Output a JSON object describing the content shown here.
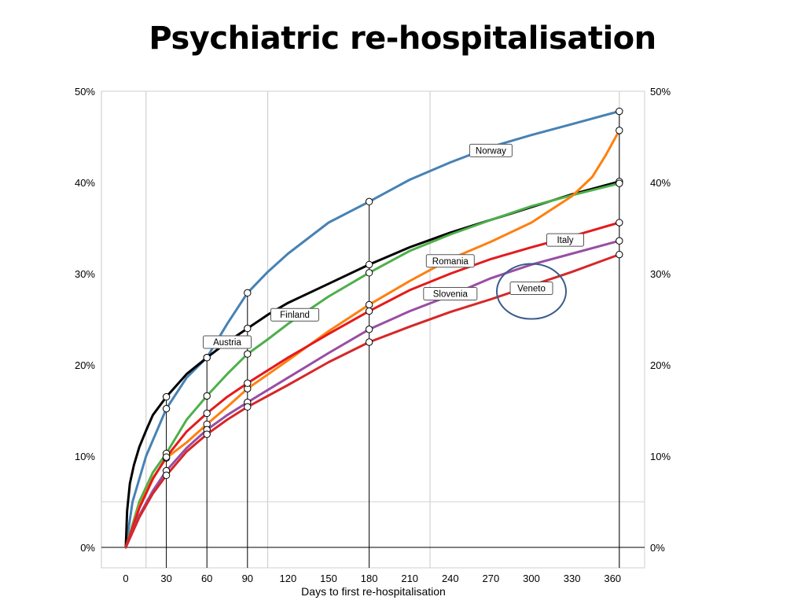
{
  "slide": {
    "title": "Psychiatric re-hospitalisation"
  },
  "chart_data": {
    "type": "line",
    "title": "Psychiatric re-hospitalisation",
    "xlabel": "Days to first re-hospitalisation",
    "ylabel": "",
    "xlim": [
      -25,
      380
    ],
    "ylim": [
      0,
      50
    ],
    "x_ticks": [
      0,
      30,
      60,
      90,
      120,
      150,
      180,
      210,
      240,
      270,
      300,
      330,
      360
    ],
    "x_tick_labels": [
      "0",
      "30",
      "60",
      "90",
      "120",
      "150",
      "180",
      "210",
      "240",
      "270",
      "300",
      "330",
      "360"
    ],
    "y_ticks": [
      0,
      10,
      20,
      30,
      40,
      50
    ],
    "y_tick_labels": [
      "0%",
      "10%",
      "20%",
      "30%",
      "40%",
      "50%"
    ],
    "right_y_axis": true,
    "grid": {
      "x_gridlines": [
        -18,
        15,
        105,
        225,
        365
      ],
      "y_gridlines": [
        5
      ]
    },
    "marker_days": [
      30,
      60,
      90,
      180,
      365
    ],
    "series": [
      {
        "name": "Norway",
        "color": "#4682b4",
        "x": [
          0,
          5,
          15,
          30,
          45,
          60,
          75,
          90,
          105,
          120,
          150,
          180,
          210,
          240,
          270,
          300,
          330,
          365
        ],
        "y": [
          0,
          5,
          10,
          15.2,
          18.6,
          20.8,
          24.5,
          27.9,
          30.2,
          32.2,
          35.6,
          37.9,
          40.3,
          42.2,
          43.9,
          45.2,
          46.4,
          47.8
        ]
      },
      {
        "name": "Austria",
        "color": "#000000",
        "x": [
          0,
          1,
          3,
          6,
          10,
          15,
          20,
          30,
          45,
          60,
          75,
          90,
          105,
          120,
          150,
          180,
          210,
          240,
          270,
          300,
          330,
          365
        ],
        "y": [
          0,
          4,
          7,
          9,
          11,
          12.8,
          14.5,
          16.5,
          19,
          20.8,
          22.5,
          24,
          25.5,
          26.8,
          28.9,
          31,
          32.9,
          34.5,
          35.9,
          37.3,
          38.7,
          40.1
        ]
      },
      {
        "name": "Finland",
        "color": "#4daf4a",
        "x": [
          0,
          10,
          20,
          30,
          45,
          60,
          75,
          90,
          105,
          120,
          150,
          180,
          210,
          240,
          270,
          300,
          330,
          365
        ],
        "y": [
          0,
          5,
          8.2,
          10.3,
          14,
          16.6,
          19,
          21.2,
          22.8,
          24.5,
          27.5,
          30.1,
          32.5,
          34.3,
          35.9,
          37.4,
          38.6,
          39.9
        ]
      },
      {
        "name": "Romania",
        "color": "#ff7f0e",
        "x": [
          0,
          10,
          20,
          30,
          45,
          60,
          75,
          90,
          120,
          150,
          180,
          210,
          240,
          270,
          300,
          330,
          345,
          355,
          365
        ],
        "y": [
          0,
          4.5,
          7.6,
          9.8,
          11.5,
          13.5,
          15.4,
          17.4,
          20.5,
          23.7,
          26.6,
          29.2,
          31.6,
          33.5,
          35.6,
          38.5,
          40.6,
          43,
          45.7
        ]
      },
      {
        "name": "Italy",
        "color": "#e41a1c",
        "x": [
          0,
          10,
          20,
          30,
          45,
          60,
          75,
          90,
          120,
          150,
          180,
          210,
          240,
          270,
          300,
          330,
          365
        ],
        "y": [
          0,
          4.3,
          7.5,
          9.9,
          12.7,
          14.7,
          16.5,
          18,
          20.8,
          23.4,
          25.9,
          28.2,
          30,
          31.6,
          32.9,
          34.1,
          35.6
        ]
      },
      {
        "name": "Slovenia",
        "color": "#984ea3",
        "x": [
          0,
          10,
          20,
          30,
          45,
          60,
          75,
          90,
          120,
          150,
          180,
          210,
          240,
          270,
          300,
          330,
          365
        ],
        "y": [
          0,
          3.5,
          6.2,
          8.4,
          10.9,
          12.9,
          14.5,
          15.9,
          18.6,
          21.3,
          23.9,
          25.9,
          27.6,
          29.5,
          31,
          32.2,
          33.6
        ]
      },
      {
        "name": "Veneto",
        "color": "#d62728",
        "x": [
          0,
          10,
          20,
          30,
          45,
          60,
          75,
          90,
          120,
          150,
          180,
          210,
          240,
          270,
          300,
          330,
          365
        ],
        "y": [
          0,
          3.3,
          5.9,
          7.9,
          10.5,
          12.4,
          14,
          15.4,
          17.8,
          20.3,
          22.5,
          24.2,
          25.8,
          27.2,
          28.7,
          30.2,
          32.1
        ]
      }
    ],
    "labels": [
      {
        "text": "Norway",
        "x": 270,
        "y": 43.5
      },
      {
        "text": "Austria",
        "x": 75,
        "y": 22.5
      },
      {
        "text": "Finland",
        "x": 125,
        "y": 25.5
      },
      {
        "text": "Romania",
        "x": 240,
        "y": 31.4
      },
      {
        "text": "Slovenia",
        "x": 240,
        "y": 27.8
      },
      {
        "text": "Italy",
        "x": 325,
        "y": 33.7
      },
      {
        "text": "Veneto",
        "x": 300,
        "y": 28.4
      }
    ],
    "highlight_circle": {
      "x": 300,
      "y": 28.4,
      "color": "#3b5b8c"
    }
  }
}
